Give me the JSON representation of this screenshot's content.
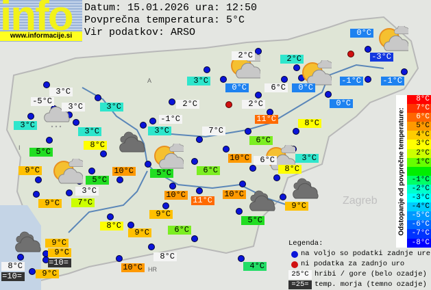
{
  "logo": {
    "word": "info",
    "url": "www.informacije.si"
  },
  "header": {
    "date_line": "Datum: 15.01.2026 ura: 12:50",
    "avg_line": "Povprečna temperatura: 5°C",
    "source_line": "Vir podatkov: ARSO"
  },
  "colors": {
    "white": "#f4f4f4",
    "dark": "#333333",
    "cyan": "#2ee6cc",
    "blue": "#1e82f0",
    "darkblue": "#1438e0",
    "green": "#22dd22",
    "lightgreen": "#7cee22",
    "yellowgreen": "#ccff00",
    "yellow": "#ffff00",
    "amber": "#ffc000",
    "orange": "#ff9900",
    "darkorange": "#ff6a00",
    "station_ok": "#0a14d8",
    "station_missing": "#d01010"
  },
  "map_text": {
    "zagreb": "Zagreb",
    "country_a": "A",
    "country_i": "I",
    "country_hr": "HR"
  },
  "stations": [
    {
      "temp": "3°C",
      "bg": "#f4f4f4"
    },
    {
      "temp": "-5°C",
      "bg": "#f4f4f4"
    },
    {
      "temp": "3°C",
      "bg": "#f4f4f4"
    },
    {
      "temp": "3°C",
      "bg": "#2ee6cc"
    },
    {
      "temp": "2°C",
      "bg": "#f4f4f4"
    },
    {
      "temp": "3°C",
      "bg": "#2ee6cc"
    },
    {
      "temp": "3°C",
      "bg": "#2ee6cc"
    },
    {
      "temp": "3°C",
      "bg": "#2ee6cc"
    },
    {
      "temp": "-1°C",
      "bg": "#f4f4f4"
    },
    {
      "temp": "3°C",
      "bg": "#2ee6cc"
    },
    {
      "temp": "7°C",
      "bg": "#f4f4f4"
    },
    {
      "temp": "8°C",
      "bg": "#ffff00"
    },
    {
      "temp": "5°C",
      "bg": "#22dd22"
    },
    {
      "temp": "9°C",
      "bg": "#ffc000"
    },
    {
      "temp": "10°C",
      "bg": "#ff9900"
    },
    {
      "temp": "5°C",
      "bg": "#22dd22"
    },
    {
      "temp": "6°C",
      "bg": "#7cee22"
    },
    {
      "temp": "5°C",
      "bg": "#22dd22"
    },
    {
      "temp": "3°C",
      "bg": "#f4f4f4"
    },
    {
      "temp": "9°C",
      "bg": "#ffc000"
    },
    {
      "temp": "7°C",
      "bg": "#ccff00"
    },
    {
      "temp": "10°C",
      "bg": "#ff9900"
    },
    {
      "temp": "11°C",
      "bg": "#ff6a00"
    },
    {
      "temp": "9°C",
      "bg": "#ffc000"
    },
    {
      "temp": "8°C",
      "bg": "#ffff00"
    },
    {
      "temp": "9°C",
      "bg": "#ffc000"
    },
    {
      "temp": "6°C",
      "bg": "#7cee22"
    },
    {
      "temp": "9°C",
      "bg": "#ffc000"
    },
    {
      "temp": "9°C",
      "bg": "#ffc000"
    },
    {
      "temp": "=10=",
      "bg": "#333333"
    },
    {
      "temp": "8°C",
      "bg": "#f4f4f4"
    },
    {
      "temp": "=10=",
      "bg": "#333333"
    },
    {
      "temp": "9°C",
      "bg": "#ffc000"
    },
    {
      "temp": "10°C",
      "bg": "#ff9900"
    },
    {
      "temp": "8°C",
      "bg": "#f4f4f4"
    },
    {
      "temp": "0°C",
      "bg": "#1e82f0"
    },
    {
      "temp": "-3°C",
      "bg": "#1438e0"
    },
    {
      "temp": "2°C",
      "bg": "#f4f4f4"
    },
    {
      "temp": "2°C",
      "bg": "#2ee6cc"
    },
    {
      "temp": "0°C",
      "bg": "#1e82f0"
    },
    {
      "temp": "6°C",
      "bg": "#f4f4f4"
    },
    {
      "temp": "0°C",
      "bg": "#1e82f0"
    },
    {
      "temp": "-1°C",
      "bg": "#1e82f0"
    },
    {
      "temp": "-1°C",
      "bg": "#1e82f0"
    },
    {
      "temp": "2°C",
      "bg": "#f4f4f4"
    },
    {
      "temp": "0°C",
      "bg": "#1e82f0"
    },
    {
      "temp": "11°C",
      "bg": "#ff6a00"
    },
    {
      "temp": "8°C",
      "bg": "#ffff00"
    },
    {
      "temp": "6°C",
      "bg": "#7cee22"
    },
    {
      "temp": "10°C",
      "bg": "#ff9900"
    },
    {
      "temp": "6°C",
      "bg": "#f4f4f4"
    },
    {
      "temp": "3°C",
      "bg": "#2ee6cc"
    },
    {
      "temp": "8°C",
      "bg": "#ffff00"
    },
    {
      "temp": "10°C",
      "bg": "#ff9900"
    },
    {
      "temp": "9°C",
      "bg": "#ffc000"
    },
    {
      "temp": "5°C",
      "bg": "#22dd22"
    },
    {
      "temp": "4°C",
      "bg": "#22dd66"
    }
  ],
  "scale": {
    "title": "Odstopanje od povprečne temperature:",
    "items": [
      {
        "label": "8°C",
        "bg": "#ff0000",
        "fg": "#ffffff"
      },
      {
        "label": "7°C",
        "bg": "#ff3300",
        "fg": "#ffffff"
      },
      {
        "label": "6°C",
        "bg": "#ff6600",
        "fg": "#ffffff"
      },
      {
        "label": "5°C",
        "bg": "#ff9900",
        "fg": "#000000"
      },
      {
        "label": "4°C",
        "bg": "#ffcc00",
        "fg": "#000000"
      },
      {
        "label": "3°C",
        "bg": "#ffff00",
        "fg": "#000000"
      },
      {
        "label": "2°C",
        "bg": "#ccff00",
        "fg": "#000000"
      },
      {
        "label": "1°C",
        "bg": "#66ff00",
        "fg": "#000000"
      },
      {
        "label": "",
        "bg": "#00ee00",
        "fg": "#000000"
      },
      {
        "label": "-1°C",
        "bg": "#00ff66",
        "fg": "#000000"
      },
      {
        "label": "-2°C",
        "bg": "#00ffcc",
        "fg": "#000000"
      },
      {
        "label": "-3°C",
        "bg": "#00ffff",
        "fg": "#000000"
      },
      {
        "label": "-4°C",
        "bg": "#00ccff",
        "fg": "#000000"
      },
      {
        "label": "-5°C",
        "bg": "#0099ff",
        "fg": "#ffffff"
      },
      {
        "label": "-6°C",
        "bg": "#0066ff",
        "fg": "#ffffff"
      },
      {
        "label": "-7°C",
        "bg": "#0033ff",
        "fg": "#ffffff"
      },
      {
        "label": "-8°C",
        "bg": "#0000ff",
        "fg": "#ffffff"
      }
    ]
  },
  "legend": {
    "title": "Legenda:",
    "available": "na voljo so podatki zadnje ure",
    "missing": "ni podatka za zadnjo uro",
    "mountain_sample": "25°C",
    "mountain": "hribi / gore (belo ozadje)",
    "sea_sample": "=25=",
    "sea": "temp. morja (temno ozadje)"
  }
}
